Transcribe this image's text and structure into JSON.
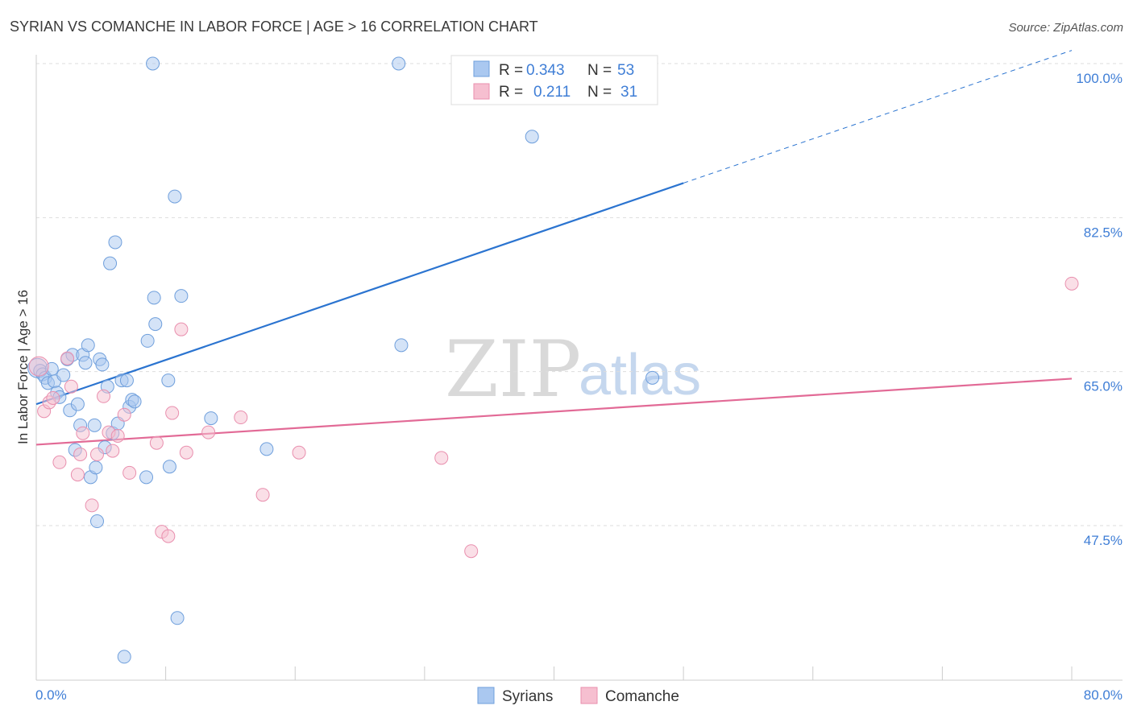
{
  "title": "SYRIAN VS COMANCHE IN LABOR FORCE | AGE > 16 CORRELATION CHART",
  "source": "Source: ZipAtlas.com",
  "watermark": {
    "zip": "ZIP",
    "atlas": "atlas"
  },
  "legend": {
    "r_label": "R =",
    "n_label": "N =",
    "rows": [
      {
        "name": "Syrians",
        "r": "0.343",
        "n": "53"
      },
      {
        "name": "Comanche",
        "r": "0.211",
        "n": "31"
      }
    ]
  },
  "chart_data": {
    "type": "scatter",
    "title": "SYRIAN VS COMANCHE IN LABOR FORCE | AGE > 16 CORRELATION CHART",
    "xlabel": "",
    "ylabel": "In Labor Force | Age > 16",
    "xlim": [
      0,
      80
    ],
    "ylim": [
      32,
      102
    ],
    "x_tick_labels": [
      "0.0%",
      "80.0%"
    ],
    "y_ticks": [
      {
        "value": 100,
        "label": "100.0%"
      },
      {
        "value": 82.5,
        "label": "82.5%"
      },
      {
        "value": 65,
        "label": "65.0%"
      },
      {
        "value": 47.5,
        "label": "47.5%"
      }
    ],
    "colors": {
      "syrians_fill": "#aac8f0",
      "syrians_stroke": "#6f9fdc",
      "syrians_line": "#2b74d0",
      "comanche_fill": "#f6bfd0",
      "comanche_stroke": "#e98fae",
      "comanche_line": "#e26a96",
      "tick_label": "#3f7ed6",
      "grid": "#dddddd"
    },
    "series": [
      {
        "name": "Syrians",
        "r": 0.343,
        "n": 53,
        "trend": {
          "x0": 0,
          "y0": 61.3,
          "x1": 80,
          "y1": 101.5,
          "solid_until_x": 50
        },
        "points": [
          {
            "x": 0.1,
            "y": 65.4
          },
          {
            "x": 0.3,
            "y": 65.1
          },
          {
            "x": 0.5,
            "y": 64.7
          },
          {
            "x": 0.7,
            "y": 64.3
          },
          {
            "x": 0.9,
            "y": 63.7
          },
          {
            "x": 1.2,
            "y": 65.3
          },
          {
            "x": 1.4,
            "y": 63.9
          },
          {
            "x": 1.6,
            "y": 62.6
          },
          {
            "x": 1.8,
            "y": 62.1
          },
          {
            "x": 2.1,
            "y": 64.6
          },
          {
            "x": 2.4,
            "y": 66.4
          },
          {
            "x": 2.6,
            "y": 60.6
          },
          {
            "x": 2.8,
            "y": 66.9
          },
          {
            "x": 3.0,
            "y": 56.1
          },
          {
            "x": 3.2,
            "y": 61.3
          },
          {
            "x": 3.4,
            "y": 58.9
          },
          {
            "x": 3.6,
            "y": 66.9
          },
          {
            "x": 3.8,
            "y": 66.0
          },
          {
            "x": 4.0,
            "y": 68.0
          },
          {
            "x": 4.2,
            "y": 53.0
          },
          {
            "x": 4.5,
            "y": 58.9
          },
          {
            "x": 4.6,
            "y": 54.1
          },
          {
            "x": 4.7,
            "y": 48.0
          },
          {
            "x": 4.9,
            "y": 66.4
          },
          {
            "x": 5.1,
            "y": 65.8
          },
          {
            "x": 5.3,
            "y": 56.4
          },
          {
            "x": 5.5,
            "y": 63.3
          },
          {
            "x": 5.7,
            "y": 77.3
          },
          {
            "x": 5.9,
            "y": 58.0
          },
          {
            "x": 6.1,
            "y": 79.7
          },
          {
            "x": 6.3,
            "y": 59.1
          },
          {
            "x": 6.6,
            "y": 64.0
          },
          {
            "x": 6.8,
            "y": 32.6
          },
          {
            "x": 7.0,
            "y": 64.0
          },
          {
            "x": 7.2,
            "y": 61.0
          },
          {
            "x": 7.4,
            "y": 61.8
          },
          {
            "x": 7.6,
            "y": 61.6
          },
          {
            "x": 8.5,
            "y": 53.0
          },
          {
            "x": 8.6,
            "y": 68.5
          },
          {
            "x": 9.0,
            "y": 100.0
          },
          {
            "x": 9.1,
            "y": 73.4
          },
          {
            "x": 9.2,
            "y": 70.4
          },
          {
            "x": 10.2,
            "y": 64.0
          },
          {
            "x": 10.3,
            "y": 54.2
          },
          {
            "x": 10.7,
            "y": 84.9
          },
          {
            "x": 10.9,
            "y": 37.0
          },
          {
            "x": 11.2,
            "y": 73.6
          },
          {
            "x": 13.5,
            "y": 59.7
          },
          {
            "x": 17.8,
            "y": 56.2
          },
          {
            "x": 28.0,
            "y": 100.0
          },
          {
            "x": 28.2,
            "y": 68.0
          },
          {
            "x": 38.3,
            "y": 91.7
          },
          {
            "x": 47.6,
            "y": 64.3
          }
        ]
      },
      {
        "name": "Comanche",
        "r": 0.211,
        "n": 31,
        "trend": {
          "x0": 0,
          "y0": 56.7,
          "x1": 80,
          "y1": 64.2,
          "solid_until_x": 80
        },
        "points": [
          {
            "x": 0.2,
            "y": 65.6
          },
          {
            "x": 0.6,
            "y": 60.5
          },
          {
            "x": 1.0,
            "y": 61.5
          },
          {
            "x": 1.3,
            "y": 62.0
          },
          {
            "x": 1.8,
            "y": 54.7
          },
          {
            "x": 2.4,
            "y": 66.5
          },
          {
            "x": 2.7,
            "y": 63.3
          },
          {
            "x": 3.2,
            "y": 53.3
          },
          {
            "x": 3.4,
            "y": 55.6
          },
          {
            "x": 3.6,
            "y": 58.0
          },
          {
            "x": 4.3,
            "y": 49.8
          },
          {
            "x": 4.7,
            "y": 55.6
          },
          {
            "x": 5.2,
            "y": 62.2
          },
          {
            "x": 5.6,
            "y": 58.1
          },
          {
            "x": 5.9,
            "y": 56.0
          },
          {
            "x": 6.3,
            "y": 57.7
          },
          {
            "x": 6.8,
            "y": 60.1
          },
          {
            "x": 7.2,
            "y": 53.5
          },
          {
            "x": 9.3,
            "y": 56.9
          },
          {
            "x": 9.7,
            "y": 46.8
          },
          {
            "x": 10.2,
            "y": 46.3
          },
          {
            "x": 10.5,
            "y": 60.3
          },
          {
            "x": 11.2,
            "y": 69.8
          },
          {
            "x": 11.6,
            "y": 55.8
          },
          {
            "x": 13.3,
            "y": 58.1
          },
          {
            "x": 15.8,
            "y": 59.8
          },
          {
            "x": 17.5,
            "y": 51.0
          },
          {
            "x": 20.3,
            "y": 55.8
          },
          {
            "x": 31.3,
            "y": 55.2
          },
          {
            "x": 33.6,
            "y": 44.6
          },
          {
            "x": 80.0,
            "y": 75.0
          }
        ]
      }
    ]
  }
}
